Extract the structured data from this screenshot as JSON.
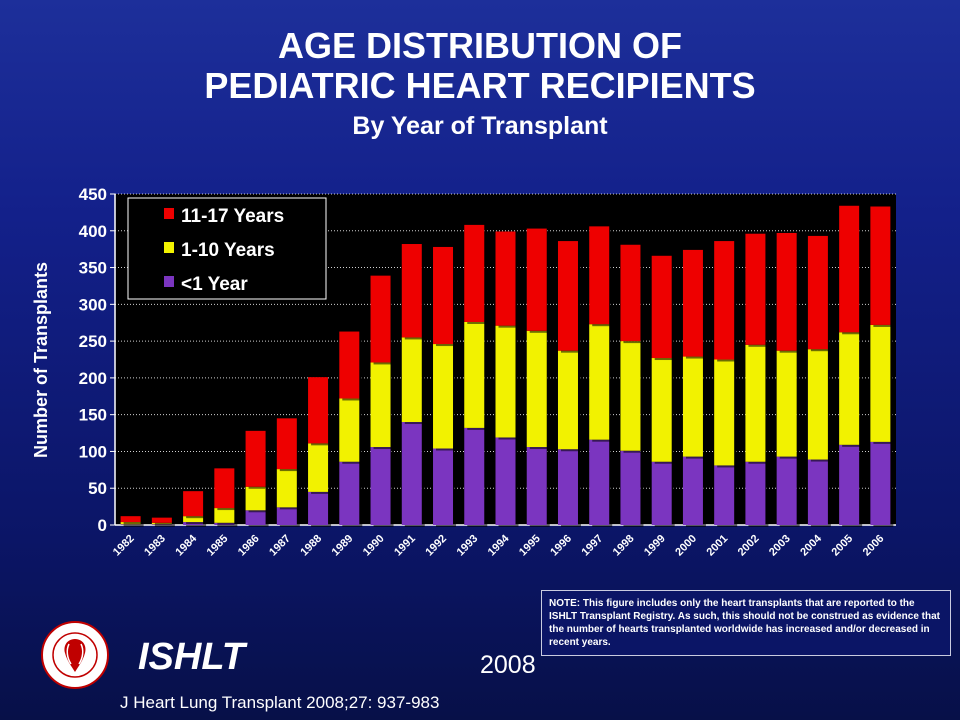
{
  "title_line1": "AGE DISTRIBUTION OF",
  "title_line2": "PEDIATRIC HEART RECIPIENTS",
  "subtitle": "By Year of Transplant",
  "note": "NOTE: This figure includes only the heart transplants that are reported to the ISHLT Transplant Registry. As such, this should not be construed as evidence that the number of hearts transplanted worldwide has increased and/or decreased in recent years.",
  "org": "ISHLT",
  "report_year": "2008",
  "citation": "J Heart Lung Transplant 2008;27: 937-983",
  "logo_text": "INTERNATIONAL SOCIETY FOR HEART & LUNG TRANSPLANTATION",
  "colors": {
    "infant": "#7b35c0",
    "child": "#f2f200",
    "teen": "#ee0000",
    "plot_bg": "#000000"
  },
  "chart_data": {
    "type": "bar",
    "stacked": true,
    "ylabel": "Number of Transplants",
    "xlabel": "",
    "ylim": [
      0,
      450
    ],
    "yticks": [
      0,
      50,
      100,
      150,
      200,
      250,
      300,
      350,
      400,
      450
    ],
    "grid": true,
    "legend_position": "top-left",
    "categories": [
      "1982",
      "1983",
      "1984",
      "1985",
      "1986",
      "1987",
      "1988",
      "1989",
      "1990",
      "1991",
      "1992",
      "1993",
      "1994",
      "1995",
      "1996",
      "1997",
      "1998",
      "1999",
      "2000",
      "2001",
      "2002",
      "2003",
      "2004",
      "2005",
      "2006"
    ],
    "series": [
      {
        "name": "<1 Year",
        "color": "#7b35c0",
        "values": [
          1,
          1,
          4,
          3,
          20,
          24,
          45,
          86,
          106,
          140,
          104,
          132,
          119,
          106,
          103,
          116,
          101,
          86,
          93,
          81,
          86,
          93,
          89,
          109,
          113
        ]
      },
      {
        "name": "1-10 Years",
        "color": "#f2f200",
        "values": [
          3,
          2,
          8,
          20,
          32,
          52,
          66,
          86,
          115,
          115,
          142,
          144,
          152,
          158,
          134,
          157,
          149,
          141,
          136,
          144,
          159,
          144,
          150,
          153,
          159
        ]
      },
      {
        "name": "11-17 Years",
        "color": "#ee0000",
        "values": [
          8,
          7,
          34,
          54,
          76,
          69,
          90,
          91,
          118,
          127,
          132,
          132,
          128,
          139,
          149,
          133,
          131,
          139,
          145,
          161,
          151,
          160,
          154,
          172,
          161
        ]
      }
    ]
  }
}
